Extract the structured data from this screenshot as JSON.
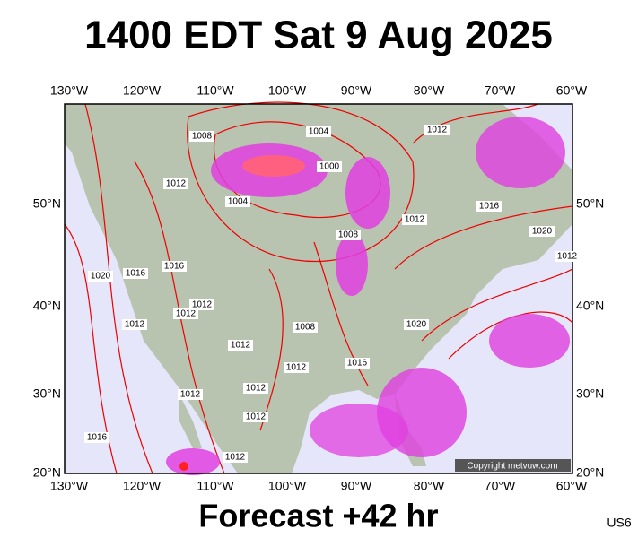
{
  "title": "1400 EDT Sat 9 Aug 2025",
  "footer": "Forecast +42 hr",
  "code": "US6",
  "copyright": "Copyright metvuw.com",
  "lon_labels": [
    "130°W",
    "120°W",
    "110°W",
    "100°W",
    "90°W",
    "80°W",
    "70°W",
    "60°W"
  ],
  "lat_labels": [
    "50°N",
    "40°N",
    "30°N",
    "20°N"
  ],
  "isobar_labels": [
    "1008",
    "1004",
    "1012",
    "1000",
    "1012",
    "1004",
    "1016",
    "1012",
    "1008",
    "1020",
    "1020",
    "1016",
    "1016",
    "1012",
    "1012",
    "1012",
    "1012",
    "1008",
    "1020",
    "1012",
    "1016",
    "1012",
    "1012",
    "1012",
    "1012",
    "1016",
    "1012"
  ]
}
